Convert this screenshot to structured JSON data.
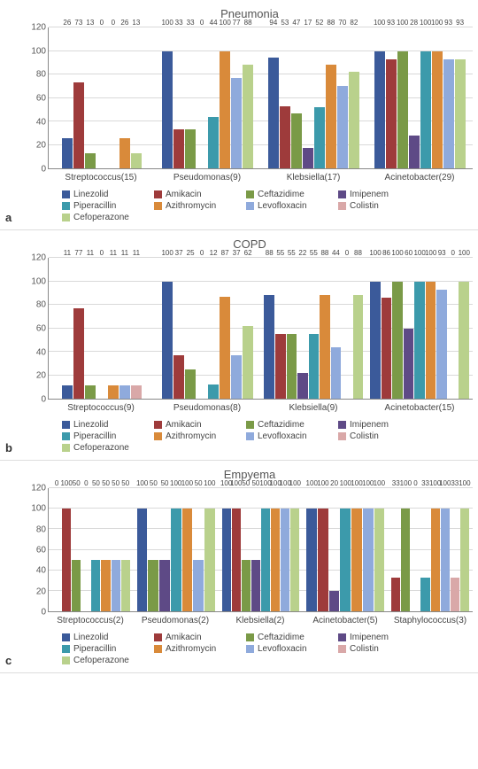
{
  "colors": {
    "Linezolid": "#3b5a9a",
    "Amikacin": "#9e3b3b",
    "Ceftazidime": "#7a9a47",
    "Imipenem": "#5e4a86",
    "Piperacillin": "#3c9aab",
    "Azithromycin": "#d98a3a",
    "Levofloxacin": "#8faadc",
    "Colistin": "#d9a8a8",
    "Cefoperazone": "#b9d18c"
  },
  "series_order": [
    "Linezolid",
    "Amikacin",
    "Ceftazidime",
    "Imipenem",
    "Piperacillin",
    "Azithromycin",
    "Levofloxacin",
    "Colistin",
    "Cefoperazone"
  ],
  "ylim": [
    0,
    120
  ],
  "ytick_step": 20,
  "grid_color": "#d9d9d9",
  "background_color": "#ffffff",
  "label_fontsize": 10,
  "value_fontsize": 8,
  "panels": [
    {
      "letter": "a",
      "title": "Pneumonia",
      "categories": [
        "Streptococcus(15)",
        "Pseudomonas(9)",
        "Klebsiella(17)",
        "Acinetobacter(29)"
      ],
      "data": {
        "Streptococcus(15)": {
          "Linezolid": 26,
          "Amikacin": 73,
          "Ceftazidime": 13,
          "Imipenem": 0,
          "Piperacillin": 0,
          "Azithromycin": 26,
          "Levofloxacin": null,
          "Colistin": null,
          "Cefoperazone": 13
        },
        "Pseudomonas(9)": {
          "Linezolid": 100,
          "Amikacin": 33,
          "Ceftazidime": 33,
          "Imipenem": 0,
          "Piperacillin": 44,
          "Azithromycin": 100,
          "Levofloxacin": 77,
          "Colistin": null,
          "Cefoperazone": 88
        },
        "Klebsiella(17)": {
          "Linezolid": 94,
          "Amikacin": 53,
          "Ceftazidime": 47,
          "Imipenem": 17,
          "Piperacillin": 52,
          "Azithromycin": 88,
          "Levofloxacin": 70,
          "Colistin": null,
          "Cefoperazone": 82
        },
        "Acinetobacter(29)": {
          "Linezolid": 100,
          "Amikacin": 93,
          "Ceftazidime": 100,
          "Imipenem": 28,
          "Piperacillin": 100,
          "Azithromycin": 100,
          "Levofloxacin": 93,
          "Colistin": null,
          "Cefoperazone": 93
        }
      }
    },
    {
      "letter": "b",
      "title": "COPD",
      "categories": [
        "Streptococcus(9)",
        "Pseudomonas(8)",
        "Klebsiella(9)",
        "Acinetobacter(15)"
      ],
      "data": {
        "Streptococcus(9)": {
          "Linezolid": 11,
          "Amikacin": 77,
          "Ceftazidime": 11,
          "Imipenem": 0,
          "Piperacillin": null,
          "Azithromycin": 11,
          "Levofloxacin": 11,
          "Colistin": 11,
          "Cefoperazone": null
        },
        "Pseudomonas(8)": {
          "Linezolid": 100,
          "Amikacin": 37,
          "Ceftazidime": 25,
          "Imipenem": 0,
          "Piperacillin": 12,
          "Azithromycin": 87,
          "Levofloxacin": 37,
          "Colistin": null,
          "Cefoperazone": 62
        },
        "Klebsiella(9)": {
          "Linezolid": 88,
          "Amikacin": 55,
          "Ceftazidime": 55,
          "Imipenem": 22,
          "Piperacillin": 55,
          "Azithromycin": 88,
          "Levofloxacin": 44,
          "Colistin": 0,
          "Cefoperazone": 88
        },
        "Acinetobacter(15)": {
          "Linezolid": 100,
          "Amikacin": 86,
          "Ceftazidime": 100,
          "Imipenem": 60,
          "Piperacillin": 100,
          "Azithromycin": 100,
          "Levofloxacin": 93,
          "Colistin": 0,
          "Cefoperazone": 100
        }
      }
    },
    {
      "letter": "c",
      "title": "Empyema",
      "categories": [
        "Streptococcus(2)",
        "Pseudomonas(2)",
        "Klebsiella(2)",
        "Acinetobacter(5)",
        "Staphylococcus(3)"
      ],
      "data": {
        "Streptococcus(2)": {
          "Linezolid": 0,
          "Amikacin": 100,
          "Ceftazidime": 50,
          "Imipenem": 0,
          "Piperacillin": 50,
          "Azithromycin": 50,
          "Levofloxacin": 50,
          "Colistin": null,
          "Cefoperazone": 50
        },
        "Pseudomonas(2)": {
          "Linezolid": 100,
          "Amikacin": null,
          "Ceftazidime": 50,
          "Imipenem": 50,
          "Piperacillin": 100,
          "Azithromycin": 100,
          "Levofloxacin": 50,
          "Colistin": null,
          "Cefoperazone": 100
        },
        "Klebsiella(2)": {
          "Linezolid": 100,
          "Amikacin": 100,
          "Ceftazidime": 50,
          "Imipenem": 50,
          "Piperacillin": 100,
          "Azithromycin": 100,
          "Levofloxacin": 100,
          "Colistin": null,
          "Cefoperazone": 100
        },
        "Acinetobacter(5)": {
          "Linezolid": 100,
          "Amikacin": 100,
          "Ceftazidime": null,
          "Imipenem": 20,
          "Piperacillin": 100,
          "Azithromycin": 100,
          "Levofloxacin": 100,
          "Colistin": null,
          "Cefoperazone": 100
        },
        "Staphylococcus(3)": {
          "Linezolid": null,
          "Amikacin": 33,
          "Ceftazidime": 100,
          "Imipenem": 0,
          "Piperacillin": 33,
          "Azithromycin": 100,
          "Levofloxacin": 100,
          "Colistin": 33,
          "Cefoperazone": 100
        }
      }
    }
  ]
}
